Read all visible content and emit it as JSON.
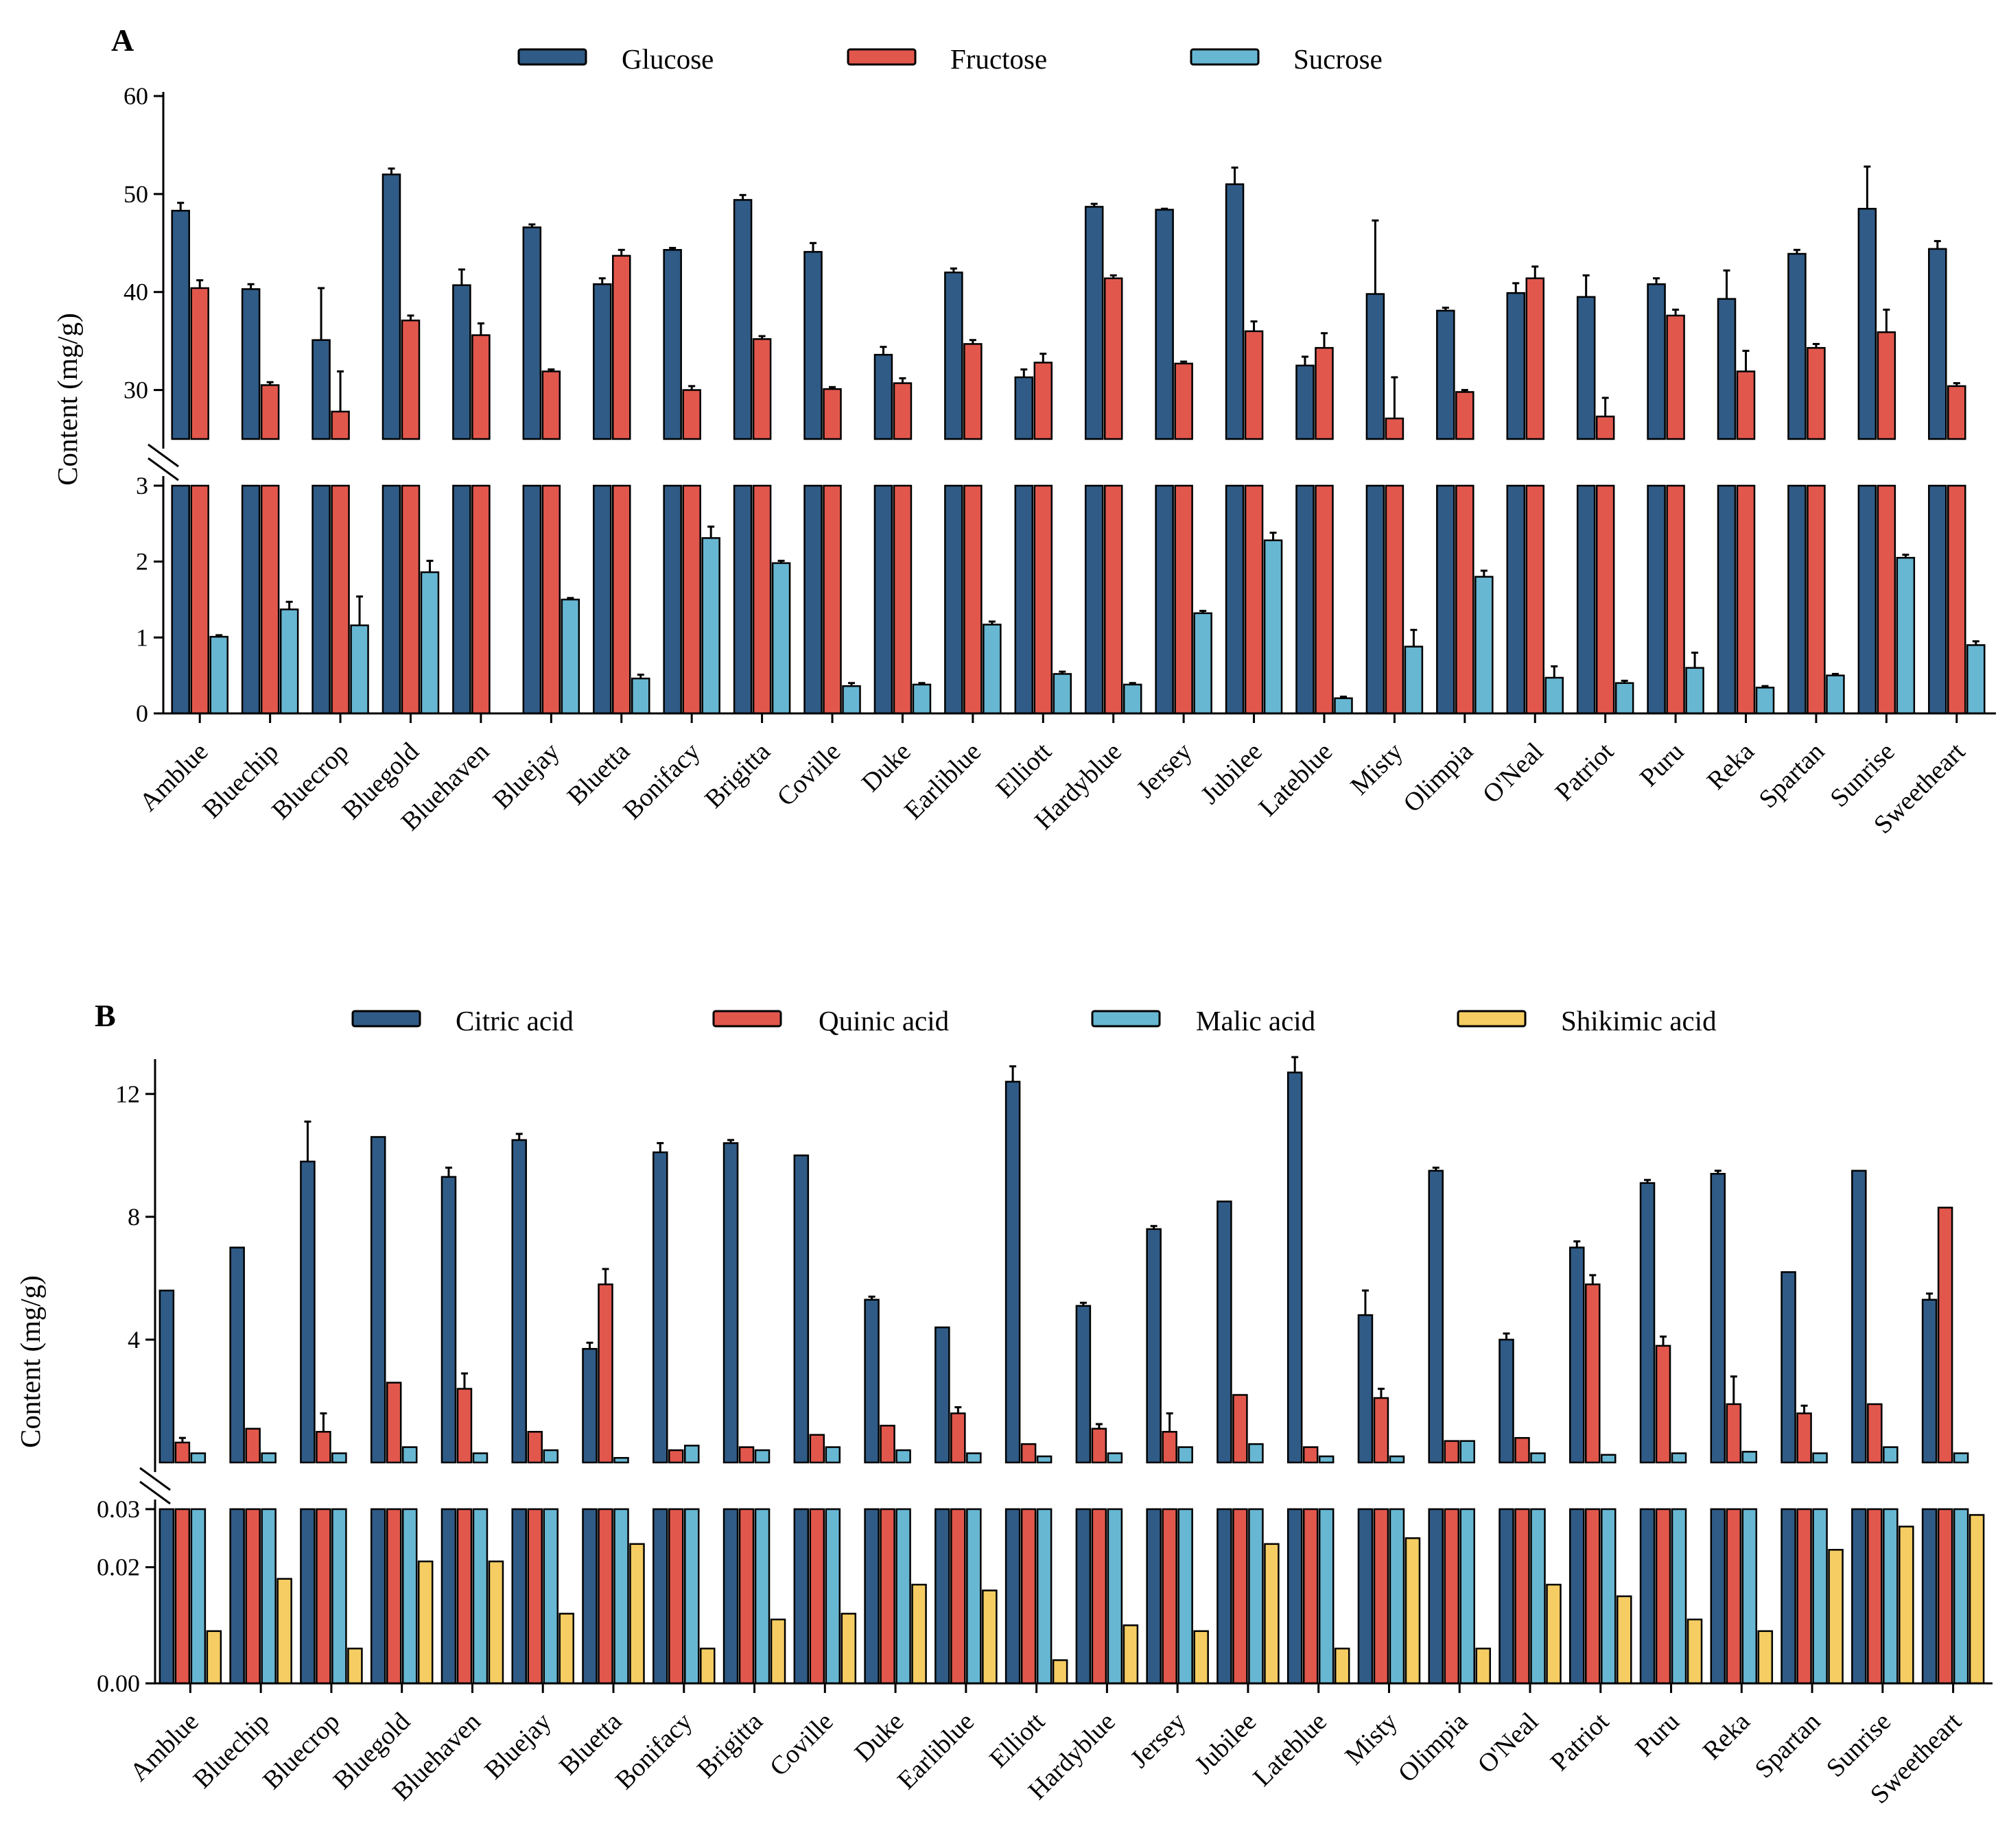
{
  "colors": {
    "dark_blue": "#2f5b86",
    "red": "#e2574c",
    "light_blue": "#67b7d3",
    "yellow": "#f5cd62"
  },
  "chart_data": [
    {
      "panel": "A",
      "type": "bar",
      "ylabel": "Content (mg/g)",
      "categories": [
        "Amblue",
        "Bluechip",
        "Bluecrop",
        "Bluegold",
        "Bluehaven",
        "Bluejay",
        "Bluetta",
        "Bonifacy",
        "Brigitta",
        "Coville",
        "Duke",
        "Earliblue",
        "Elliott",
        "Hardyblue",
        "Jersey",
        "Jubilee",
        "Lateblue",
        "Misty",
        "Olimpia",
        "O'Neal",
        "Patriot",
        "Puru",
        "Reka",
        "Spartan",
        "Sunrise",
        "Sweetheart"
      ],
      "axis_break": true,
      "upper_ylim": [
        25,
        60
      ],
      "upper_ticks": [
        "30",
        "40",
        "50",
        "60"
      ],
      "lower_ylim": [
        0,
        3
      ],
      "lower_ticks": [
        "0",
        "1",
        "2",
        "3"
      ],
      "series": [
        {
          "name": "Glucose",
          "color_key": "dark_blue",
          "axis": "upper",
          "values": [
            48.3,
            40.3,
            35.1,
            52.0,
            40.7,
            46.6,
            40.8,
            44.3,
            49.4,
            44.1,
            33.6,
            42.0,
            31.3,
            48.7,
            48.4,
            51.0,
            32.5,
            39.8,
            38.1,
            39.9,
            39.5,
            40.8,
            39.3,
            43.9,
            48.5,
            44.4
          ],
          "errors": [
            0.8,
            0.5,
            5.3,
            0.6,
            1.6,
            0.3,
            0.6,
            0.2,
            0.5,
            0.9,
            0.8,
            0.4,
            0.8,
            0.3,
            0.1,
            1.7,
            0.9,
            7.5,
            0.3,
            1.0,
            2.2,
            0.6,
            2.9,
            0.4,
            4.3,
            0.8
          ]
        },
        {
          "name": "Fructose",
          "color_key": "red",
          "axis": "upper",
          "values": [
            40.4,
            30.5,
            27.8,
            37.1,
            35.6,
            31.9,
            43.7,
            30.0,
            35.2,
            30.1,
            30.7,
            34.7,
            32.8,
            41.4,
            32.7,
            36.0,
            34.3,
            27.1,
            29.8,
            41.4,
            27.3,
            37.6,
            31.9,
            34.3,
            35.9,
            30.4
          ],
          "errors": [
            0.8,
            0.3,
            4.1,
            0.5,
            1.2,
            0.2,
            0.6,
            0.4,
            0.3,
            0.2,
            0.5,
            0.4,
            0.9,
            0.3,
            0.2,
            1.0,
            1.5,
            4.2,
            0.2,
            1.2,
            1.9,
            0.6,
            2.1,
            0.4,
            2.3,
            0.3
          ]
        },
        {
          "name": "Sucrose",
          "color_key": "light_blue",
          "axis": "lower",
          "values": [
            1.01,
            1.37,
            1.16,
            1.86,
            0,
            1.5,
            0.46,
            2.31,
            1.98,
            0.36,
            0.38,
            1.17,
            0.52,
            0.38,
            1.32,
            2.28,
            0.2,
            0.88,
            1.8,
            0.47,
            0.4,
            0.6,
            0.34,
            0.5,
            2.05,
            0.9
          ],
          "errors": [
            0.02,
            0.1,
            0.38,
            0.15,
            0,
            0.02,
            0.05,
            0.15,
            0.03,
            0.04,
            0.02,
            0.04,
            0.03,
            0.02,
            0.03,
            0.1,
            0.02,
            0.22,
            0.08,
            0.15,
            0.03,
            0.2,
            0.02,
            0.02,
            0.04,
            0.05
          ]
        }
      ]
    },
    {
      "panel": "B",
      "type": "bar",
      "ylabel": "Content (mg/g)",
      "categories": [
        "Amblue",
        "Bluechip",
        "Bluecrop",
        "Bluegold",
        "Bluehaven",
        "Bluejay",
        "Bluetta",
        "Bonifacy",
        "Brigitta",
        "Coville",
        "Duke",
        "Earliblue",
        "Elliott",
        "Hardyblue",
        "Jersey",
        "Jubilee",
        "Lateblue",
        "Misty",
        "Olimpia",
        "O'Neal",
        "Patriot",
        "Puru",
        "Reka",
        "Spartan",
        "Sunrise",
        "Sweetheart"
      ],
      "axis_break": true,
      "upper_ylim": [
        0,
        13
      ],
      "upper_ticks": [
        "4",
        "8",
        "12"
      ],
      "lower_ylim": [
        0,
        0.03
      ],
      "lower_ticks": [
        "0.00",
        "0.02",
        "0.03"
      ],
      "lower_tick_positions": [
        0,
        0.02,
        0.03
      ],
      "series": [
        {
          "name": "Citric acid",
          "color_key": "dark_blue",
          "axis": "upper",
          "values": [
            5.6,
            7.0,
            9.8,
            10.6,
            9.3,
            10.5,
            3.7,
            10.1,
            10.4,
            10.0,
            5.3,
            4.4,
            12.4,
            5.1,
            7.6,
            8.5,
            12.7,
            4.8,
            9.5,
            4.0,
            7.0,
            9.1,
            9.4,
            6.2,
            9.5,
            5.3
          ],
          "errors": [
            0,
            0,
            1.3,
            0,
            0.3,
            0.2,
            0.2,
            0.3,
            0.1,
            0,
            0.1,
            0,
            0.5,
            0.1,
            0.1,
            0,
            0.5,
            0.8,
            0.1,
            0.2,
            0.2,
            0.1,
            0.1,
            0,
            0,
            0.2
          ]
        },
        {
          "name": "Quinic acid",
          "color_key": "red",
          "axis": "upper",
          "values": [
            0.65,
            1.1,
            1.0,
            2.6,
            2.4,
            1.0,
            5.8,
            0.4,
            0.5,
            0.9,
            1.2,
            1.6,
            0.6,
            1.1,
            1.0,
            2.2,
            0.5,
            2.1,
            0.7,
            0.8,
            5.8,
            3.8,
            1.9,
            1.6,
            1.9,
            8.3
          ],
          "errors": [
            0.15,
            0,
            0.6,
            0,
            0.5,
            0,
            0.5,
            0,
            0,
            0,
            0,
            0.2,
            0,
            0.15,
            0.6,
            0,
            0,
            0.3,
            0,
            0,
            0.3,
            0.3,
            0.9,
            0.25,
            0,
            0
          ]
        },
        {
          "name": "Malic acid",
          "color_key": "light_blue",
          "axis": "upper",
          "values": [
            0.3,
            0.3,
            0.3,
            0.5,
            0.3,
            0.4,
            0.15,
            0.55,
            0.4,
            0.5,
            0.4,
            0.3,
            0.2,
            0.3,
            0.5,
            0.6,
            0.2,
            0.2,
            0.7,
            0.3,
            0.25,
            0.3,
            0.35,
            0.3,
            0.5,
            0.3
          ],
          "errors": [
            0,
            0,
            0,
            0,
            0,
            0,
            0,
            0,
            0,
            0,
            0,
            0,
            0,
            0,
            0,
            0,
            0,
            0,
            0,
            0,
            0,
            0,
            0,
            0,
            0,
            0
          ]
        },
        {
          "name": "Shikimic acid",
          "color_key": "yellow",
          "axis": "lower",
          "values": [
            0.009,
            0.018,
            0.006,
            0.021,
            0.021,
            0.012,
            0.024,
            0.006,
            0.011,
            0.012,
            0.017,
            0.016,
            0.004,
            0.01,
            0.009,
            0.024,
            0.006,
            0.025,
            0.006,
            0.017,
            0.015,
            0.011,
            0.009,
            0.023,
            0.027,
            0.029
          ],
          "errors": [
            0,
            0,
            0,
            0,
            0,
            0,
            0,
            0,
            0,
            0,
            0,
            0,
            0,
            0,
            0,
            0,
            0,
            0,
            0,
            0,
            0,
            0,
            0,
            0,
            0,
            0
          ]
        }
      ]
    }
  ]
}
